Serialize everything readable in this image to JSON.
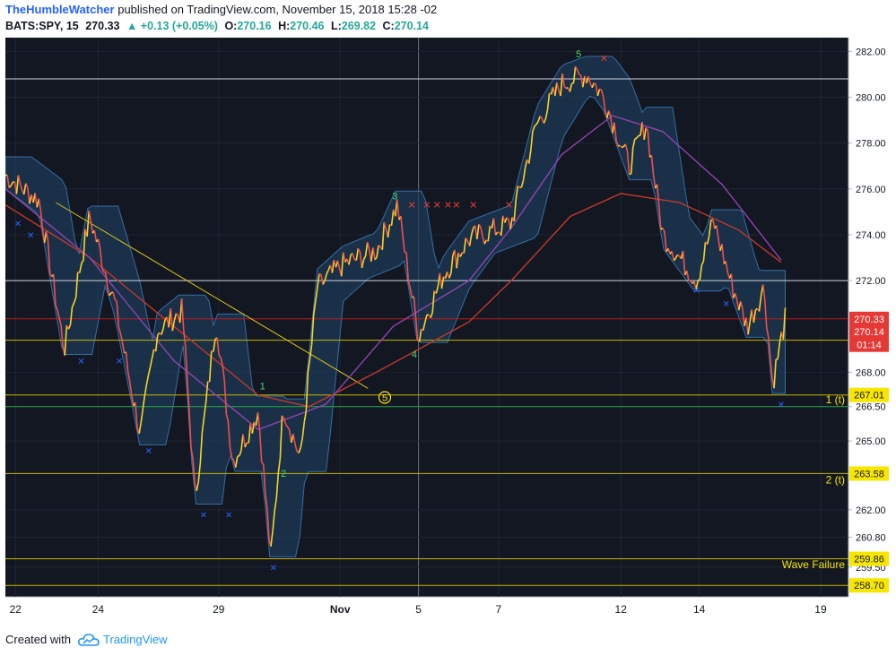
{
  "header": {
    "username": "TheHumbleWatcher",
    "published_text": "published on TradingView.com, November 15, 2018 15:28 -02"
  },
  "ohlc": {
    "symbol": "BATS:SPY, 15",
    "last": "270.33",
    "change": "▲ +0.13 (+0.05%)",
    "o_label": "O:",
    "o": "270.16",
    "h_label": "H:",
    "h": "270.46",
    "l_label": "L:",
    "l": "269.82",
    "c_label": "C:",
    "c": "270.14"
  },
  "footer": {
    "created_with": "Created with",
    "brand": "TradingView"
  },
  "colors": {
    "background": "#131722",
    "grid": "#1f2535",
    "ribbon_fill": "#1e3a55",
    "ribbon_line": "#3d7fbf",
    "price_up": "#f5d327",
    "price_down": "#ef4f4f",
    "ma_purple": "#8e44ad",
    "ma_red": "#c0392b",
    "label_yellow": "#f7e600",
    "label_red": "#e53935",
    "wave_green": "#4cd964"
  },
  "chart_data": {
    "type": "line",
    "symbol": "BATS:SPY",
    "interval": "15",
    "x_tick_labels": [
      "22",
      "24",
      "29",
      "Nov",
      "5",
      "7",
      "12",
      "14",
      "19"
    ],
    "y_tick_labels": [
      "282.00",
      "280.00",
      "278.00",
      "276.00",
      "274.00",
      "272.00",
      "268.00",
      "266.50",
      "265.00",
      "262.00",
      "260.80",
      "259.50"
    ],
    "ylim": [
      258.2,
      282.6
    ],
    "grid": true,
    "price_path": [
      {
        "t": 0.0,
        "p": 276.6
      },
      {
        "t": 0.04,
        "p": 275.5
      },
      {
        "t": 0.07,
        "p": 269.0
      },
      {
        "t": 0.1,
        "p": 274.8
      },
      {
        "t": 0.13,
        "p": 271.0
      },
      {
        "t": 0.16,
        "p": 265.3
      },
      {
        "t": 0.18,
        "p": 269.8
      },
      {
        "t": 0.21,
        "p": 270.7
      },
      {
        "t": 0.225,
        "p": 262.5
      },
      {
        "t": 0.25,
        "p": 270.3
      },
      {
        "t": 0.27,
        "p": 264.1
      },
      {
        "t": 0.3,
        "p": 266.3
      },
      {
        "t": 0.315,
        "p": 259.9
      },
      {
        "t": 0.33,
        "p": 266.5
      },
      {
        "t": 0.35,
        "p": 264.2
      },
      {
        "t": 0.37,
        "p": 271.7
      },
      {
        "t": 0.4,
        "p": 272.7
      },
      {
        "t": 0.44,
        "p": 273.3
      },
      {
        "t": 0.465,
        "p": 275.3
      },
      {
        "t": 0.49,
        "p": 269.6
      },
      {
        "t": 0.52,
        "p": 272.3
      },
      {
        "t": 0.55,
        "p": 273.8
      },
      {
        "t": 0.6,
        "p": 274.5
      },
      {
        "t": 0.63,
        "p": 278.8
      },
      {
        "t": 0.66,
        "p": 280.6
      },
      {
        "t": 0.69,
        "p": 281.0
      },
      {
        "t": 0.71,
        "p": 280.0
      },
      {
        "t": 0.74,
        "p": 277.0
      },
      {
        "t": 0.76,
        "p": 278.9
      },
      {
        "t": 0.78,
        "p": 274.0
      },
      {
        "t": 0.8,
        "p": 273.0
      },
      {
        "t": 0.82,
        "p": 272.0
      },
      {
        "t": 0.84,
        "p": 274.6
      },
      {
        "t": 0.86,
        "p": 272.0
      },
      {
        "t": 0.88,
        "p": 270.0
      },
      {
        "t": 0.9,
        "p": 271.7
      },
      {
        "t": 0.91,
        "p": 267.5
      },
      {
        "t": 0.925,
        "p": 270.3
      }
    ],
    "ma_purple_path": [
      {
        "t": 0.0,
        "p": 276.0
      },
      {
        "t": 0.1,
        "p": 273.0
      },
      {
        "t": 0.2,
        "p": 268.5
      },
      {
        "t": 0.3,
        "p": 265.5
      },
      {
        "t": 0.38,
        "p": 266.6
      },
      {
        "t": 0.46,
        "p": 270.0
      },
      {
        "t": 0.55,
        "p": 272.0
      },
      {
        "t": 0.6,
        "p": 274.3
      },
      {
        "t": 0.66,
        "p": 277.5
      },
      {
        "t": 0.72,
        "p": 279.2
      },
      {
        "t": 0.78,
        "p": 278.5
      },
      {
        "t": 0.85,
        "p": 276.2
      },
      {
        "t": 0.92,
        "p": 272.9
      }
    ],
    "ma_red_path": [
      {
        "t": 0.0,
        "p": 275.3
      },
      {
        "t": 0.1,
        "p": 273.0
      },
      {
        "t": 0.2,
        "p": 270.0
      },
      {
        "t": 0.3,
        "p": 267.0
      },
      {
        "t": 0.36,
        "p": 266.5
      },
      {
        "t": 0.44,
        "p": 268.0
      },
      {
        "t": 0.55,
        "p": 270.2
      },
      {
        "t": 0.6,
        "p": 272.0
      },
      {
        "t": 0.67,
        "p": 274.8
      },
      {
        "t": 0.73,
        "p": 275.8
      },
      {
        "t": 0.8,
        "p": 275.4
      },
      {
        "t": 0.87,
        "p": 274.2
      },
      {
        "t": 0.92,
        "p": 272.8
      }
    ],
    "horizontal_levels": [
      {
        "price": 280.8,
        "color": "#d1d4dc"
      },
      {
        "price": 272.0,
        "color": "#d1d4dc"
      },
      {
        "price": 270.33,
        "color": "#b71c1c"
      },
      {
        "price": 269.4,
        "color": "#c6b500"
      },
      {
        "price": 267.01,
        "color": "#c6b500"
      },
      {
        "price": 266.5,
        "color": "#27a844"
      },
      {
        "price": 263.58,
        "color": "#c6b500"
      },
      {
        "price": 259.86,
        "color": "#c6b500"
      },
      {
        "price": 258.7,
        "color": "#c6b500"
      }
    ],
    "trendline": {
      "from": {
        "t": 0.06,
        "p": 275.4
      },
      "to": {
        "t": 0.43,
        "p": 267.3
      }
    },
    "price_labels": [
      {
        "text": "270.33",
        "price": 270.33,
        "bg": "#e53935",
        "fg": "#ffffff"
      },
      {
        "text": "270.14",
        "price": 269.78,
        "bg": "#e53935",
        "fg": "#ffffff"
      },
      {
        "text": "01:14",
        "price": 269.2,
        "bg": "#e53935",
        "fg": "#ffffff"
      },
      {
        "text": "267.01",
        "price": 267.01,
        "bg": "#f7e600",
        "fg": "#131722"
      },
      {
        "text": "263.58",
        "price": 263.58,
        "bg": "#f7e600",
        "fg": "#131722"
      },
      {
        "text": "259.86",
        "price": 259.86,
        "bg": "#f7e600",
        "fg": "#131722"
      },
      {
        "text": "258.70",
        "price": 258.7,
        "bg": "#f7e600",
        "fg": "#131722"
      }
    ],
    "annotations": [
      {
        "text": "1 (t)",
        "price": 266.8,
        "color": "#f7e600"
      },
      {
        "text": "2 (t)",
        "price": 263.3,
        "color": "#f7e600"
      },
      {
        "text": "Wave Failure",
        "price": 259.6,
        "color": "#f7e600"
      }
    ],
    "wave_labels": [
      {
        "text": "1",
        "t": 0.305,
        "p": 267.4
      },
      {
        "text": "2",
        "t": 0.33,
        "p": 263.6
      },
      {
        "text": "3",
        "t": 0.462,
        "p": 275.7
      },
      {
        "text": "4",
        "t": 0.485,
        "p": 268.8
      },
      {
        "text": "5",
        "t": 0.68,
        "p": 281.9
      },
      {
        "text": "5",
        "t": 0.45,
        "p": 266.9,
        "circled": true
      }
    ],
    "red_marks": [
      {
        "t": 0.482,
        "p": 275.3
      },
      {
        "t": 0.5,
        "p": 275.3
      },
      {
        "t": 0.512,
        "p": 275.3
      },
      {
        "t": 0.525,
        "p": 275.3
      },
      {
        "t": 0.535,
        "p": 275.3
      },
      {
        "t": 0.555,
        "p": 275.3
      },
      {
        "t": 0.597,
        "p": 275.3
      },
      {
        "t": 0.71,
        "p": 281.7
      }
    ],
    "blue_marks": [
      {
        "t": 0.015,
        "p": 274.5
      },
      {
        "t": 0.03,
        "p": 274.0
      },
      {
        "t": 0.09,
        "p": 268.5
      },
      {
        "t": 0.135,
        "p": 268.5
      },
      {
        "t": 0.17,
        "p": 264.6
      },
      {
        "t": 0.235,
        "p": 261.8
      },
      {
        "t": 0.265,
        "p": 261.8
      },
      {
        "t": 0.318,
        "p": 259.5
      },
      {
        "t": 0.82,
        "p": 271.6
      },
      {
        "t": 0.855,
        "p": 271.0
      },
      {
        "t": 0.92,
        "p": 266.6
      }
    ]
  }
}
